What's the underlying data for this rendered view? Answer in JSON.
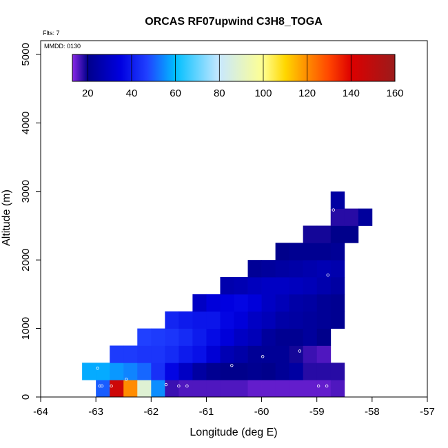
{
  "chart_data": {
    "type": "heatmap",
    "title": "ORCAS RF07upwind C3H8_TOGA",
    "xlabel": "Longitude (deg E)",
    "ylabel": "Altitude (m)",
    "xlim": [
      -64,
      -57
    ],
    "ylim": [
      0,
      5200
    ],
    "x_ticks": [
      -64,
      -63,
      -62,
      -61,
      -60,
      -59,
      -58,
      -57
    ],
    "y_ticks": [
      0,
      1000,
      2000,
      3000,
      4000,
      5000
    ],
    "flights_label": "Flts: 7",
    "date_label": "MMDD: 0130",
    "colorbar": {
      "range": [
        13,
        160
      ],
      "ticks": [
        20,
        40,
        60,
        80,
        100,
        120,
        140,
        160
      ],
      "stops": [
        {
          "v": 13,
          "c": "#8a28e6"
        },
        {
          "v": 20,
          "c": "#00008b"
        },
        {
          "v": 35,
          "c": "#0000e0"
        },
        {
          "v": 47,
          "c": "#2040ff"
        },
        {
          "v": 60,
          "c": "#00bfff"
        },
        {
          "v": 80,
          "c": "#c8e8ff"
        },
        {
          "v": 100,
          "c": "#ffff90"
        },
        {
          "v": 110,
          "c": "#ffd700"
        },
        {
          "v": 120,
          "c": "#ff8c00"
        },
        {
          "v": 130,
          "c": "#ff4500"
        },
        {
          "v": 140,
          "c": "#dd0000"
        },
        {
          "v": 160,
          "c": "#9b1b1b"
        }
      ]
    },
    "cell_size": {
      "lon": 0.25,
      "alt": 250
    },
    "rows": [
      {
        "alt": 0,
        "x0": -63.0,
        "values": [
          50,
          145,
          120,
          88,
          55,
          17,
          16,
          16,
          16,
          16,
          16,
          15,
          15,
          15,
          15,
          15,
          15,
          16
        ]
      },
      {
        "alt": 250,
        "x0": -63.25,
        "values": [
          58,
          58,
          56,
          54,
          51,
          44,
          36,
          30,
          24,
          21,
          20,
          20,
          21,
          20,
          22,
          24,
          18,
          18,
          18
        ]
      },
      {
        "alt": 500,
        "x0": -62.75,
        "values": [
          46,
          46,
          45,
          45,
          43,
          40,
          38,
          33,
          27,
          25,
          22,
          22,
          22,
          19,
          17,
          16
        ]
      },
      {
        "alt": 750,
        "x0": -62.25,
        "values": [
          47,
          46,
          45,
          43,
          40,
          37,
          34,
          30,
          28,
          23,
          21,
          21,
          23,
          20
        ]
      },
      {
        "alt": 1000,
        "x0": -61.75,
        "values": [
          42,
          40,
          39,
          39,
          36,
          34,
          30,
          28,
          25,
          24,
          23,
          22,
          21
        ]
      },
      {
        "alt": 1250,
        "x0": -61.25,
        "values": [
          30,
          34,
          35,
          36,
          34,
          30,
          28,
          25,
          24,
          22,
          21
        ]
      },
      {
        "alt": 1500,
        "x0": -60.75,
        "values": [
          26,
          27,
          29,
          30,
          30,
          29,
          28,
          26,
          24
        ]
      },
      {
        "alt": 1750,
        "x0": -60.25,
        "values": [
          22,
          23,
          24,
          25,
          26,
          27,
          26
        ]
      },
      {
        "alt": 2000,
        "x0": -59.75,
        "values": [
          20,
          21,
          21,
          21,
          22
        ]
      },
      {
        "alt": 2250,
        "x0": -59.25,
        "values": [
          19,
          19,
          20,
          20
        ]
      },
      {
        "alt": 2500,
        "x0": -58.75,
        "values": [
          18,
          18,
          23
        ]
      },
      {
        "alt": 2750,
        "x0": -58.75,
        "values": [
          24
        ]
      }
    ],
    "points": [
      {
        "lon": -62.97,
        "alt": 420
      },
      {
        "lon": -62.93,
        "alt": 160
      },
      {
        "lon": -62.89,
        "alt": 160
      },
      {
        "lon": -62.72,
        "alt": 160
      },
      {
        "lon": -62.45,
        "alt": 260
      },
      {
        "lon": -61.73,
        "alt": 180
      },
      {
        "lon": -61.5,
        "alt": 160
      },
      {
        "lon": -61.35,
        "alt": 160
      },
      {
        "lon": -60.54,
        "alt": 460
      },
      {
        "lon": -59.98,
        "alt": 590
      },
      {
        "lon": -59.31,
        "alt": 670
      },
      {
        "lon": -58.97,
        "alt": 160
      },
      {
        "lon": -58.82,
        "alt": 160
      },
      {
        "lon": -58.8,
        "alt": 1780
      },
      {
        "lon": -58.7,
        "alt": 2730
      },
      {
        "lon": -58.62,
        "alt": 860
      }
    ]
  }
}
